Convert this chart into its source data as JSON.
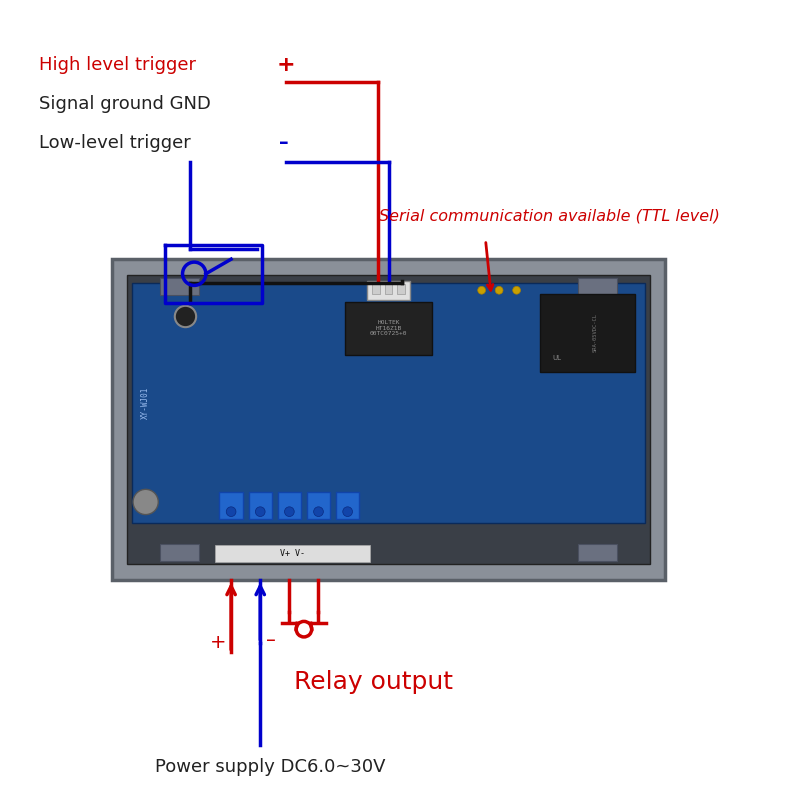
{
  "bg_color": "#ffffff",
  "fig_width": 8.0,
  "fig_height": 8.0,
  "labels": {
    "high_level": "High level trigger",
    "signal_gnd": "Signal ground GND",
    "low_level": "Low-level trigger",
    "serial_comm": "Serial communication available (TTL level)",
    "relay_output": "Relay output",
    "power_supply": "Power supply DC6.0~30V"
  },
  "label_colors": {
    "high_level": "#cc0000",
    "signal_gnd": "#222222",
    "low_level": "#222222",
    "serial_comm": "#cc0000",
    "relay_output": "#cc0000",
    "power_supply": "#222222"
  },
  "red": "#cc0000",
  "blue": "#0000cc",
  "black": "#111111"
}
